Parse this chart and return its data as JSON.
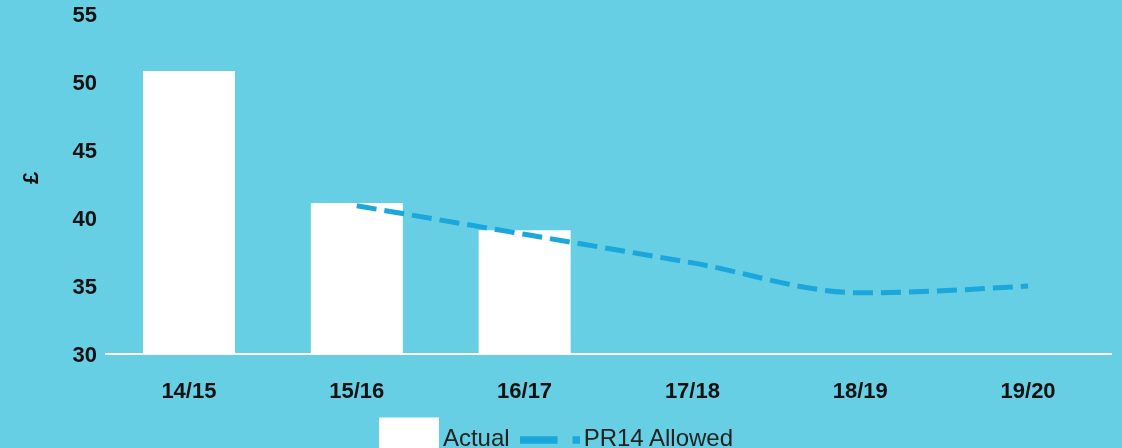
{
  "chart_data": {
    "type": "bar",
    "ylabel": "£",
    "categories": [
      "14/15",
      "15/16",
      "16/17",
      "17/18",
      "18/19",
      "19/20"
    ],
    "series": [
      {
        "name": "Actual",
        "color": "#ffffff",
        "values": [
          50.8,
          41.1,
          39.1,
          null,
          null,
          null
        ]
      },
      {
        "name": "PR14 Allowed",
        "type": "line",
        "color": "#1ba6dc",
        "line_style": "dashed",
        "values": [
          null,
          40.9,
          38.8,
          36.7,
          34.5,
          35.0
        ]
      }
    ],
    "ylim": [
      30,
      55
    ],
    "yticks": [
      30,
      35,
      40,
      45,
      50,
      55
    ],
    "grid": false,
    "legend": "bottom",
    "marker": "none"
  }
}
